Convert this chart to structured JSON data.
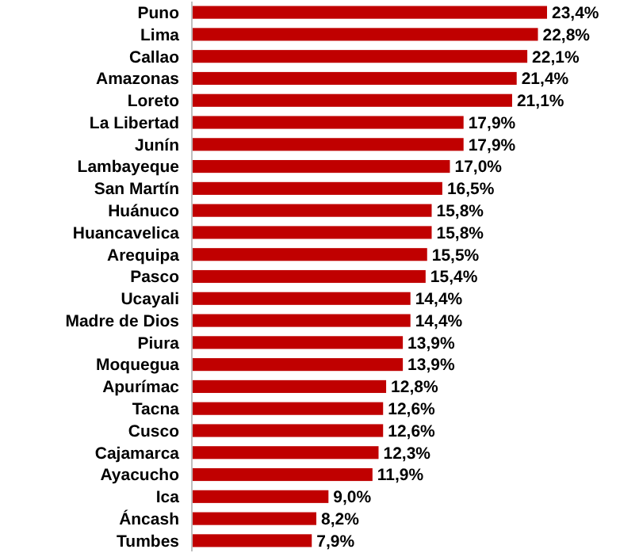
{
  "chart_data": {
    "type": "bar",
    "orientation": "horizontal",
    "color": "#c00000",
    "categories": [
      "Puno",
      "Lima",
      "Callao",
      "Amazonas",
      "Loreto",
      "La Libertad",
      "Junín",
      "Lambayeque",
      "San Martín",
      "Huánuco",
      "Huancavelica",
      "Arequipa",
      "Pasco",
      "Ucayali",
      "Madre de Dios",
      "Piura",
      "Moquegua",
      "Apurímac",
      "Tacna",
      "Cusco",
      "Cajamarca",
      "Ayacucho",
      "Ica",
      "Áncash",
      "Tumbes"
    ],
    "values": [
      23.4,
      22.8,
      22.1,
      21.4,
      21.1,
      17.9,
      17.9,
      17.0,
      16.5,
      15.8,
      15.8,
      15.5,
      15.4,
      14.4,
      14.4,
      13.9,
      13.9,
      12.8,
      12.6,
      12.6,
      12.3,
      11.9,
      9.0,
      8.2,
      7.9
    ],
    "value_labels": [
      "23,4%",
      "22,8%",
      "22,1%",
      "21,4%",
      "21,1%",
      "17,9%",
      "17,9%",
      "17,0%",
      "16,5%",
      "15,8%",
      "15,8%",
      "15,5%",
      "15,4%",
      "14,4%",
      "14,4%",
      "13,9%",
      "13,9%",
      "12,8%",
      "12,6%",
      "12,6%",
      "12,3%",
      "11,9%",
      "9,0%",
      "8,2%",
      "7,9%"
    ]
  }
}
